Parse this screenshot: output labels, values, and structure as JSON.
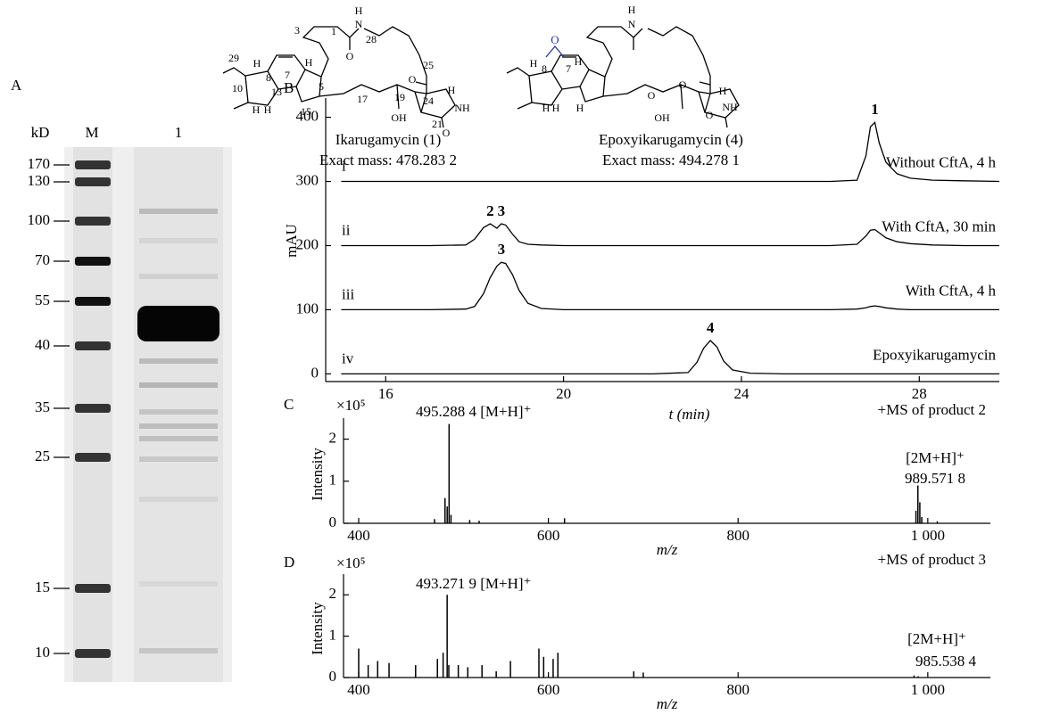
{
  "gel": {
    "panel_label": "A",
    "unit_label": "kD",
    "lanes": [
      "M",
      "1"
    ],
    "markers": [
      170,
      130,
      100,
      70,
      55,
      40,
      35,
      25,
      15,
      10
    ]
  },
  "structures": [
    {
      "name": "Ikarugamycin (1)",
      "mass": "Exact mass: 478.283 2",
      "atoms": [
        "H",
        "N",
        "1",
        "3",
        "28",
        "25",
        "29",
        "H",
        "8",
        "7",
        "H",
        "5",
        "O",
        "O",
        "24",
        "H",
        "10",
        "13",
        "H",
        "H",
        "15",
        "17",
        "19",
        "NH",
        "21",
        "OH",
        "O"
      ]
    },
    {
      "name": "Epoxyikarugamycin (4)",
      "mass": "Exact mass: 494.278 1",
      "epoxide_color": "#2233bb",
      "atoms": [
        "O",
        "H",
        "8",
        "7",
        "H",
        "H",
        "N",
        "O",
        "O",
        "H",
        "NH",
        "H",
        "H",
        "H",
        "OH",
        "O"
      ]
    }
  ],
  "chart_data": [
    {
      "type": "line",
      "panel": "B",
      "ylabel": "mAU",
      "xlabel": "t (min)",
      "x": [
        15,
        16,
        17,
        17.8,
        18.0,
        18.2,
        18.35,
        18.5,
        18.6,
        18.7,
        18.85,
        19.0,
        19.2,
        19.5,
        20,
        21,
        22,
        22.8,
        23.0,
        23.15,
        23.3,
        23.45,
        23.6,
        23.8,
        24.2,
        25,
        26,
        26.6,
        26.8,
        26.9,
        27.0,
        27.1,
        27.25,
        27.5,
        27.8,
        28.3,
        29,
        29.8
      ],
      "xlim": [
        14.65,
        29.8
      ],
      "xticks": [
        16,
        20,
        24,
        28
      ],
      "ylim": [
        -12,
        430
      ],
      "yticks": [
        0,
        100,
        200,
        300,
        400
      ],
      "series": [
        {
          "name": "Without CftA, 4 h",
          "trace": "i",
          "color": "#000000",
          "peaks": [
            {
              "label": "1",
              "x": 27.0
            }
          ],
          "values": [
            300,
            300,
            300,
            300,
            300,
            300,
            300,
            300,
            300,
            300,
            300,
            300,
            300,
            300,
            300,
            300,
            300,
            300,
            300,
            300,
            300,
            300,
            300,
            300,
            300,
            300,
            300,
            302,
            340,
            385,
            392,
            360,
            330,
            312,
            305,
            302,
            301,
            300
          ]
        },
        {
          "name": "With CftA, 30 min",
          "trace": "ii",
          "color": "#000000",
          "peaks": [
            {
              "label": "2",
              "x": 18.35
            },
            {
              "label": "3",
              "x": 18.6
            }
          ],
          "values": [
            200,
            200,
            200,
            201,
            210,
            228,
            234,
            227,
            234,
            232,
            218,
            206,
            202,
            201,
            200,
            200,
            200,
            200,
            200,
            200,
            200,
            200,
            200,
            200,
            200,
            200,
            200,
            202,
            215,
            224,
            225,
            220,
            212,
            206,
            203,
            201,
            200,
            200
          ]
        },
        {
          "name": "With CftA, 4 h",
          "trace": "iii",
          "color": "#000000",
          "peaks": [
            {
              "label": "3",
              "x": 18.6
            }
          ],
          "values": [
            100,
            100,
            100,
            101,
            105,
            125,
            150,
            168,
            174,
            172,
            155,
            130,
            110,
            102,
            100,
            100,
            100,
            100,
            100,
            100,
            100,
            100,
            100,
            100,
            100,
            100,
            100,
            101,
            103,
            105,
            106,
            105,
            103,
            101,
            100,
            100,
            100,
            100
          ]
        },
        {
          "name": "Epoxyikarugamycin",
          "trace": "iv",
          "color": "#000000",
          "peaks": [
            {
              "label": "4",
              "x": 23.3
            }
          ],
          "values": [
            0,
            0,
            0,
            0,
            0,
            0,
            0,
            0,
            0,
            0,
            0,
            0,
            0,
            0,
            0,
            0,
            0,
            2,
            18,
            40,
            52,
            42,
            20,
            6,
            1,
            0,
            0,
            0,
            0,
            0,
            0,
            0,
            0,
            0,
            0,
            0,
            0,
            0
          ]
        }
      ]
    },
    {
      "type": "stick",
      "panel": "C",
      "ylabel": "Intensity",
      "scale_label": "×10⁵",
      "xlabel": "m/z",
      "color": "#000000",
      "x": [
        480,
        491,
        493.3,
        495.29,
        497.3,
        517,
        527,
        617,
        987.5,
        989.57,
        991.6,
        993.6,
        1010
      ],
      "values": [
        0.1,
        0.6,
        0.4,
        2.36,
        0.2,
        0.08,
        0.06,
        0.12,
        0.3,
        0.9,
        0.5,
        0.15,
        0.05
      ],
      "xlim": [
        384,
        1066
      ],
      "xticks": [
        400,
        600,
        800,
        {
          "value": 1000,
          "label": "1 000"
        }
      ],
      "ylim": [
        0,
        2.5
      ],
      "yticks": [
        0,
        1,
        2
      ],
      "annotations": [
        "495.288 4 [M+H]⁺",
        "+MS of product 2",
        "[2M+H]⁺",
        "989.571 8"
      ]
    },
    {
      "type": "stick",
      "panel": "D",
      "ylabel": "Intensity",
      "scale_label": "×10⁵",
      "xlabel": "m/z",
      "color": "#000000",
      "x": [
        400,
        410,
        420,
        432,
        460,
        483,
        489,
        493.27,
        495,
        505,
        515,
        530,
        545,
        560,
        590,
        595,
        605,
        610,
        690,
        700,
        985.54,
        990
      ],
      "values": [
        0.7,
        0.3,
        0.4,
        0.35,
        0.3,
        0.45,
        0.6,
        2.0,
        0.3,
        0.3,
        0.25,
        0.3,
        0.15,
        0.4,
        0.7,
        0.5,
        0.45,
        0.6,
        0.15,
        0.12,
        0.05,
        0.03
      ],
      "xlim": [
        384,
        1066
      ],
      "xticks": [
        400,
        600,
        800,
        {
          "value": 1000,
          "label": "1 000"
        }
      ],
      "ylim": [
        0,
        2.5
      ],
      "yticks": [
        0,
        1,
        2
      ],
      "annotations": [
        "493.271 9 [M+H]⁺",
        "+MS of product 3",
        "[2M+H]⁺",
        "985.538 4"
      ]
    }
  ]
}
